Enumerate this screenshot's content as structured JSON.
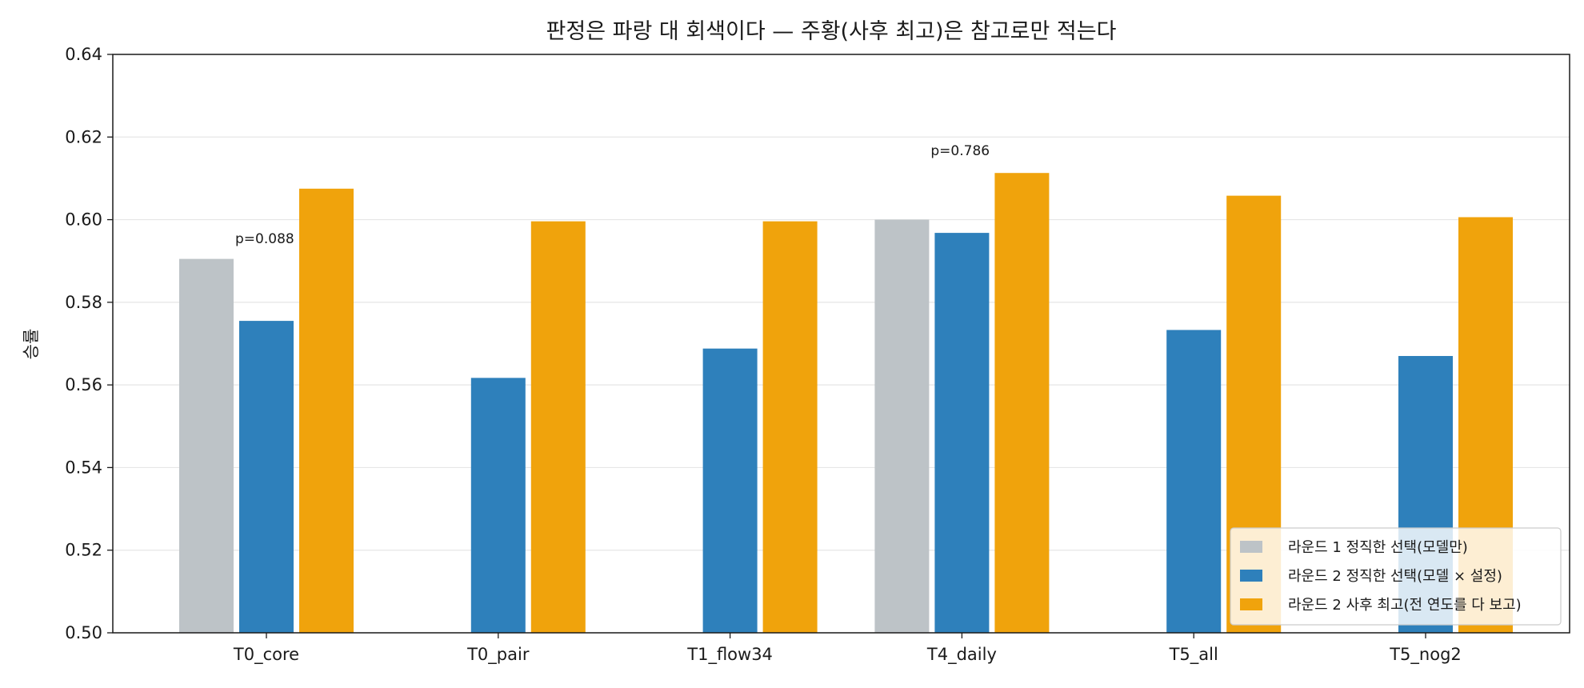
{
  "chart_data": {
    "type": "bar",
    "title": "판정은 파랑 대 회색이다 — 주황(사후 최고)은 참고로만 적는다",
    "xlabel": "",
    "ylabel": "승률",
    "ylim": [
      0.5,
      0.64
    ],
    "yticks": [
      "0.50",
      "0.52",
      "0.54",
      "0.56",
      "0.58",
      "0.60",
      "0.62",
      "0.64"
    ],
    "categories": [
      "T0_core",
      "T0_pair",
      "T1_flow34",
      "T4_daily",
      "T5_all",
      "T5_nog2"
    ],
    "grid": "horizontal",
    "legend_position": "bottom-right",
    "series": [
      {
        "name": "라운드 1 정직한 선택(모델만)",
        "color": "#bdc3c7",
        "values": [
          0.5905,
          null,
          null,
          0.6,
          null,
          null
        ]
      },
      {
        "name": "라운드 2 정직한 선택(모델 × 설정)",
        "color": "#2e80bb",
        "values": [
          0.5755,
          0.5617,
          0.5688,
          0.5968,
          0.5733,
          0.567
        ]
      },
      {
        "name": "라운드 2 사후 최고(전 연도를 다 보고)",
        "color": "#f0a30c",
        "values": [
          0.6075,
          0.5996,
          0.5996,
          0.6113,
          0.6058,
          0.6006
        ]
      }
    ],
    "annotations": [
      {
        "category": "T0_core",
        "text": "p=0.088"
      },
      {
        "category": "T4_daily",
        "text": "p=0.786"
      }
    ]
  }
}
